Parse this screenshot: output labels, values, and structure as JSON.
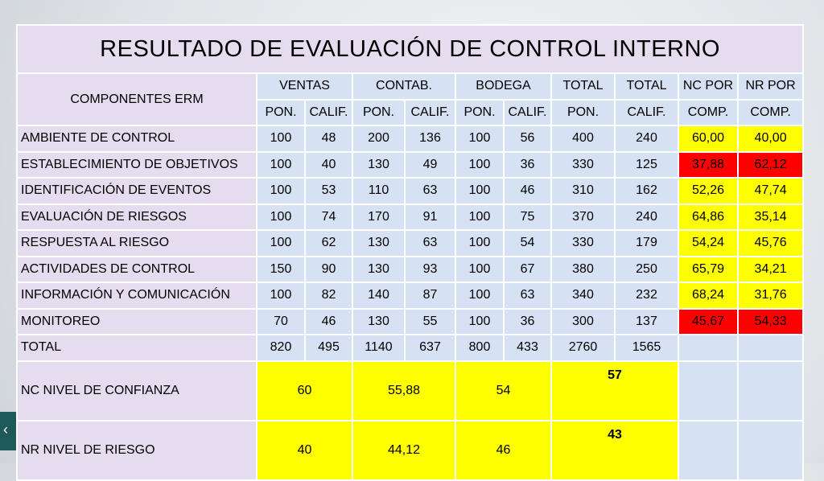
{
  "title": "RESULTADO DE EVALUACIÓN DE CONTROL INTERNO",
  "header": {
    "component": "COMPONENTES ERM",
    "groups": [
      "VENTAS",
      "CONTAB.",
      "BODEGA",
      "TOTAL",
      "TOTAL",
      "NC POR",
      "NR POR"
    ],
    "sub": [
      "PON.",
      "CALIF.",
      "PON.",
      "CALIF.",
      "PON.",
      "CALIF.",
      "PON.",
      "CALIF.",
      "COMP.",
      "COMP."
    ]
  },
  "rows": [
    [
      "AMBIENTE DE CONTROL",
      "100",
      "48",
      "200",
      "136",
      "100",
      "56",
      "400",
      "240",
      "60,00",
      "40,00"
    ],
    [
      "ESTABLECIMIENTO DE OBJETIVOS",
      "100",
      "40",
      "130",
      "49",
      "100",
      "36",
      "330",
      "125",
      "37,88",
      "62,12"
    ],
    [
      "IDENTIFICACIÓN DE EVENTOS",
      "100",
      "53",
      "110",
      "63",
      "100",
      "46",
      "310",
      "162",
      "52,26",
      "47,74"
    ],
    [
      "EVALUACIÓN DE RIESGOS",
      "100",
      "74",
      "170",
      "91",
      "100",
      "75",
      "370",
      "240",
      "64,86",
      "35,14"
    ],
    [
      "RESPUESTA AL RIESGO",
      "100",
      "62",
      "130",
      "63",
      "100",
      "54",
      "330",
      "179",
      "54,24",
      "45,76"
    ],
    [
      "ACTIVIDADES DE CONTROL",
      "150",
      "90",
      "130",
      "93",
      "100",
      "67",
      "380",
      "250",
      "65,79",
      "34,21"
    ],
    [
      "INFORMACIÓN Y COMUNICACIÓN",
      "100",
      "82",
      "140",
      "87",
      "100",
      "63",
      "340",
      "232",
      "68,24",
      "31,76"
    ],
    [
      "MONITOREO",
      "70",
      "46",
      "130",
      "55",
      "100",
      "36",
      "300",
      "137",
      "45,67",
      "54,33"
    ]
  ],
  "total": [
    "TOTAL",
    "820",
    "495",
    "1140",
    "637",
    "800",
    "433",
    "2760",
    "1565"
  ],
  "nc": {
    "label": "NC NIVEL DE CONFIANZA",
    "values": [
      "60",
      "55,88",
      "54",
      "57"
    ]
  },
  "nr": {
    "label": "NR NIVEL DE RIESGO",
    "values": [
      "40",
      "44,12",
      "46",
      "43"
    ]
  }
}
